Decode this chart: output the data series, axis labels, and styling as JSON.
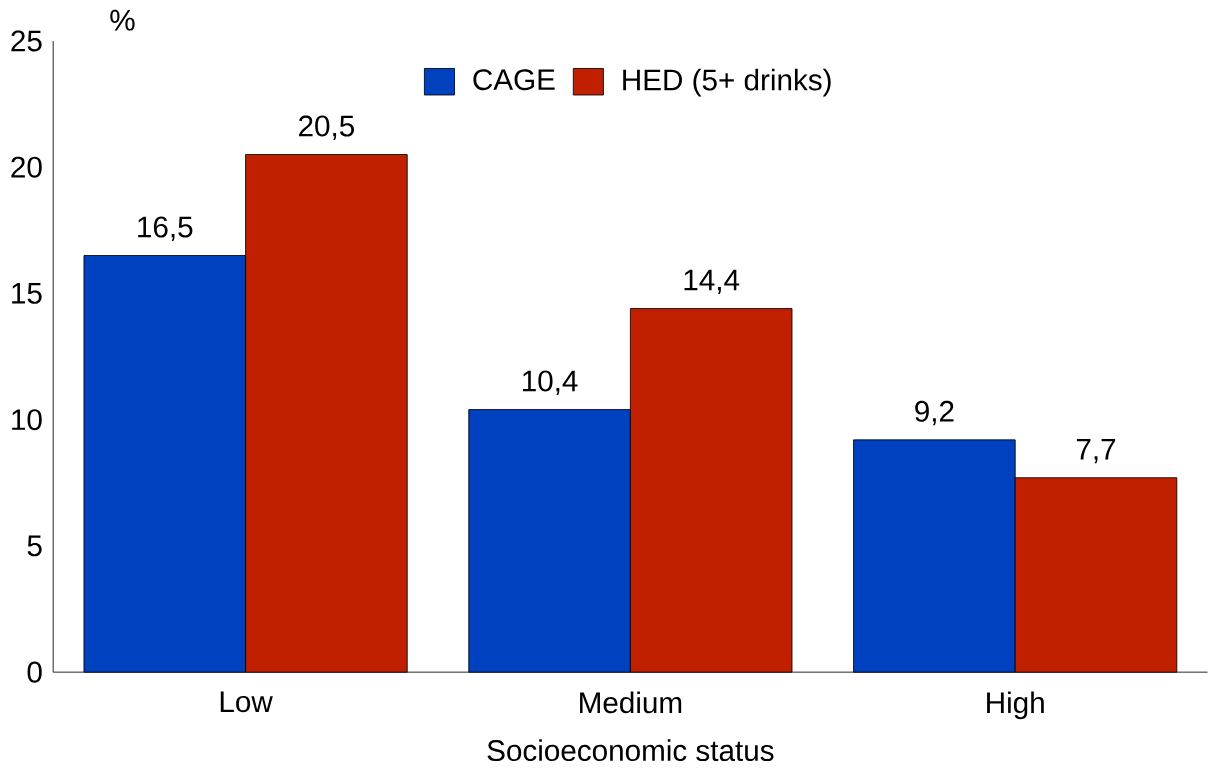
{
  "chart_data": {
    "type": "bar",
    "xlabel": "Socioeconomic status",
    "ylabel": "%",
    "categories": [
      "Low",
      "Medium",
      "High"
    ],
    "series": [
      {
        "name": "CAGE",
        "color": "#0041c0",
        "values": [
          16.5,
          10.4,
          9.2
        ],
        "value_labels": [
          "16,5",
          "10,4",
          "9,2"
        ]
      },
      {
        "name": "HED (5+ drinks)",
        "color": "#c02000",
        "values": [
          20.5,
          14.4,
          7.7
        ],
        "value_labels": [
          "20,5",
          "14,4",
          "7,7"
        ]
      }
    ],
    "ylim": [
      0,
      25
    ],
    "yticks": [
      0,
      5,
      10,
      15,
      20,
      25
    ],
    "legend": "top",
    "grid": false
  }
}
